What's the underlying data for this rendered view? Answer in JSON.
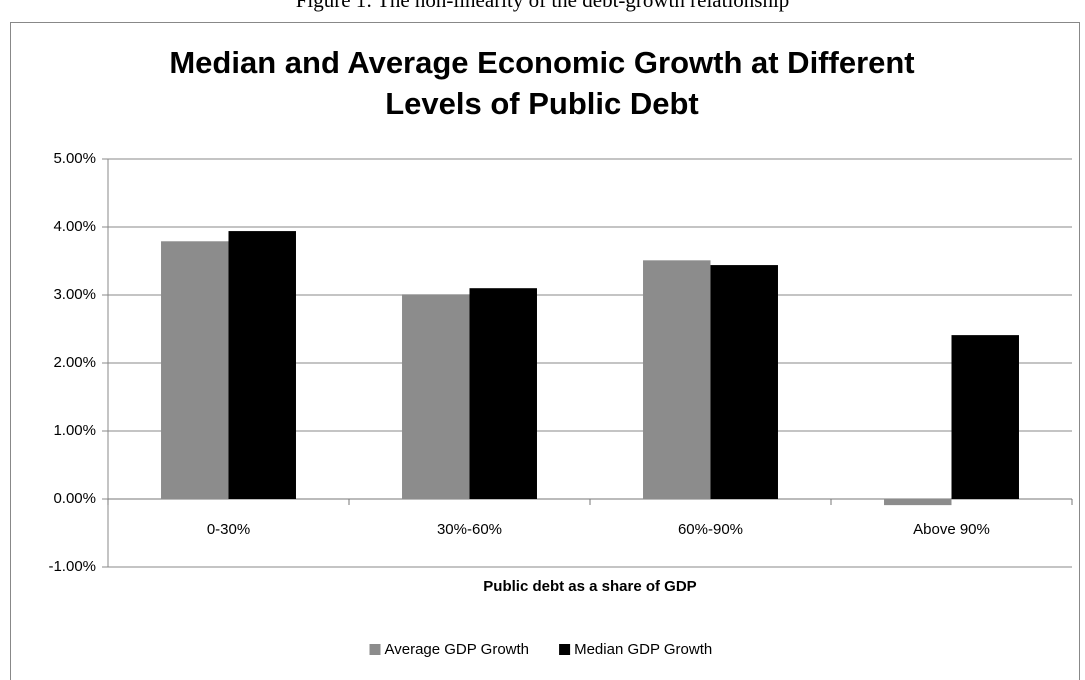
{
  "figure_caption": "Figure 1: The non-linearity of the debt-growth relationship",
  "chart_data": {
    "type": "bar",
    "title": "Median and Average Economic Growth at Different Levels of Public Debt",
    "x_label": "Public debt as a share of GDP",
    "categories": [
      "0-30%",
      "30%-60%",
      "60%-90%",
      "Above 90%"
    ],
    "series": [
      {
        "name": "Average GDP Growth",
        "color": "#8c8c8c",
        "values": [
          3.79,
          3.01,
          3.51,
          -0.09
        ]
      },
      {
        "name": "Median GDP Growth",
        "color": "#000000",
        "values": [
          3.94,
          3.1,
          3.44,
          2.41
        ]
      }
    ],
    "ylim": [
      -1,
      5
    ],
    "yticks": [
      {
        "value": -1,
        "label": "-1.00%"
      },
      {
        "value": 0,
        "label": "0.00%"
      },
      {
        "value": 1,
        "label": "1.00%"
      },
      {
        "value": 2,
        "label": "2.00%"
      },
      {
        "value": 3,
        "label": "3.00%"
      },
      {
        "value": 4,
        "label": "4.00%"
      },
      {
        "value": 5,
        "label": "5.00%"
      }
    ],
    "grid": true,
    "legend": "bottom"
  }
}
